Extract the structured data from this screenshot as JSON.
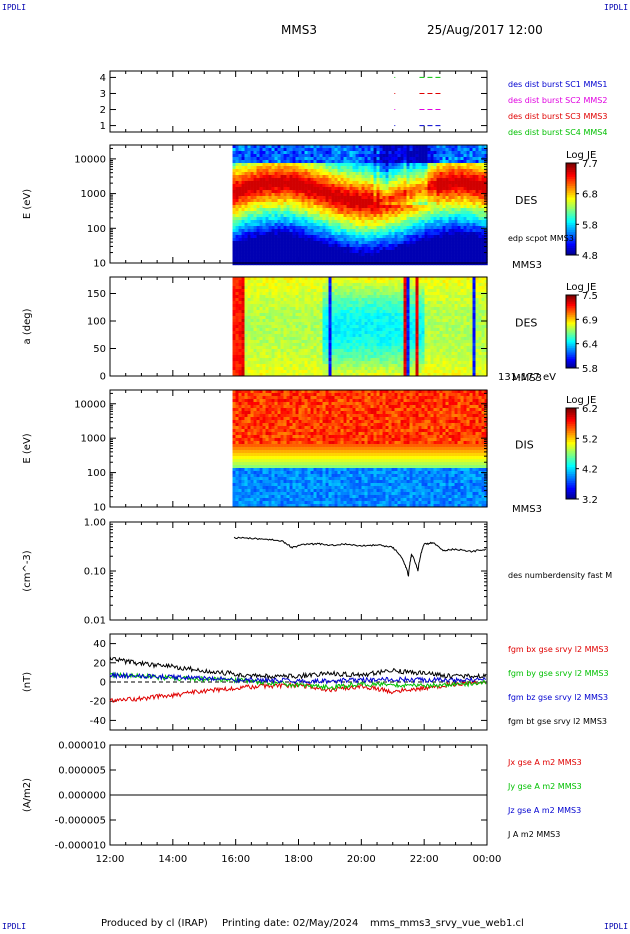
{
  "corner_labels": {
    "top_left": "IPDLI",
    "top_right": "IPDLI",
    "bottom_left": "IPDLI",
    "bottom_right": "IPDLI"
  },
  "header": {
    "spacecraft": "MMS3",
    "datetime": "25/Aug/2017 12:00"
  },
  "footer": {
    "produced_by": "Produced by cl (IRAP)",
    "printing_date": "Printing date: 02/May/2024",
    "filename": "mms_mms3_srvy_vue_web1.cl"
  },
  "time_axis": {
    "ticks": [
      "12:00",
      "14:00",
      "16:00",
      "18:00",
      "20:00",
      "22:00",
      "00:00"
    ],
    "range_hours": [
      12,
      24
    ]
  },
  "colors": {
    "red": "#e00000",
    "magenta": "#e000e0",
    "blue": "#0000d0",
    "green": "#00c000",
    "black": "#000000"
  },
  "chart_data": [
    {
      "id": "burst",
      "type": "scatter",
      "ylim": [
        0.6,
        4.4
      ],
      "yticks": [
        "1",
        "2",
        "3",
        "4"
      ],
      "legend": [
        {
          "name": "des dist burst SC1 MMS1",
          "color": "#0000d0"
        },
        {
          "name": "des dist burst SC2 MMS2",
          "color": "#e000e0"
        },
        {
          "name": "des dist burst SC3 MMS3",
          "color": "#e00000"
        },
        {
          "name": "des dist burst SC4 MMS4",
          "color": "#00c000"
        }
      ],
      "series": [
        {
          "level": 1,
          "color": "#0000d0",
          "intervals": [
            [
              21.05,
              21.08
            ],
            [
              21.85,
              22.55
            ]
          ]
        },
        {
          "level": 2,
          "color": "#e000e0",
          "intervals": [
            [
              21.05,
              21.08
            ],
            [
              21.85,
              22.55
            ]
          ]
        },
        {
          "level": 3,
          "color": "#e00000",
          "intervals": [
            [
              21.05,
              21.08
            ],
            [
              21.85,
              22.55
            ]
          ]
        },
        {
          "level": 4,
          "color": "#00c000",
          "intervals": [
            [
              21.05,
              21.08
            ],
            [
              21.85,
              22.55
            ]
          ]
        }
      ]
    },
    {
      "id": "des_energy",
      "type": "heatmap",
      "ylabel": "E (eV)",
      "yticks": [
        "10",
        "100",
        "1000",
        "10000"
      ],
      "ylog": [
        1,
        4.4
      ],
      "label": "DES",
      "sublabel": "MMS3",
      "overlay": "edp scpot MMS3",
      "colorbar": {
        "title": "Log JE",
        "ticks": [
          "7.7",
          "6.8",
          "5.8",
          "4.8"
        ],
        "range": [
          4.8,
          7.7
        ]
      },
      "data_start_hour": 15.9
    },
    {
      "id": "des_pitch",
      "type": "heatmap",
      "ylabel": "a (deg)",
      "yticks": [
        "0",
        "50",
        "100",
        "150"
      ],
      "ylim": [
        0,
        180
      ],
      "label": "DES",
      "sublabel": "MMS3",
      "energy_band": "131-177 eV",
      "colorbar": {
        "title": "Log JE",
        "ticks": [
          "7.5",
          "6.9",
          "6.4",
          "5.8"
        ],
        "range": [
          5.8,
          7.5
        ]
      },
      "data_start_hour": 15.9
    },
    {
      "id": "dis_energy",
      "type": "heatmap",
      "ylabel": "E (eV)",
      "yticks": [
        "10",
        "100",
        "1000",
        "10000"
      ],
      "ylog": [
        1,
        4.4
      ],
      "label": "DIS",
      "sublabel": "MMS3",
      "colorbar": {
        "title": "Log JE",
        "ticks": [
          "6.2",
          "5.2",
          "4.2",
          "3.2"
        ],
        "range": [
          3.2,
          6.2
        ]
      },
      "data_start_hour": 15.9
    },
    {
      "id": "density",
      "type": "line",
      "ylabel": "(cm^-3)",
      "yticks": [
        "0.01",
        "0.10",
        "1.00"
      ],
      "ylog": [
        -2,
        0
      ],
      "legend": [
        {
          "name": "des numberdensity fast M",
          "color": "#000000"
        }
      ],
      "series": [
        {
          "name": "des numberdensity fast M",
          "color": "#000000",
          "x": [
            15.95,
            16.5,
            17.0,
            17.5,
            17.8,
            18.2,
            18.6,
            19.0,
            19.5,
            20.0,
            20.5,
            21.0,
            21.3,
            21.5,
            21.6,
            21.8,
            22.0,
            22.3,
            22.6,
            23.0,
            23.5,
            24.0
          ],
          "y": [
            0.48,
            0.46,
            0.45,
            0.4,
            0.3,
            0.35,
            0.36,
            0.34,
            0.35,
            0.33,
            0.34,
            0.3,
            0.18,
            0.08,
            0.22,
            0.1,
            0.35,
            0.38,
            0.26,
            0.28,
            0.25,
            0.28
          ]
        }
      ]
    },
    {
      "id": "fgm",
      "type": "line",
      "ylabel": "(nT)",
      "yticks": [
        "-40",
        "-20",
        "0",
        "20",
        "40"
      ],
      "ylim": [
        -50,
        50
      ],
      "legend": [
        {
          "name": "fgm bx gse srvy l2 MMS3",
          "color": "#e00000"
        },
        {
          "name": "fgm by gse srvy l2 MMS3",
          "color": "#00c000"
        },
        {
          "name": "fgm bz gse srvy l2 MMS3",
          "color": "#0000d0"
        },
        {
          "name": "fgm bt gse srvy l2 MMS3",
          "color": "#000000"
        }
      ],
      "series": [
        {
          "name": "bx",
          "color": "#e00000",
          "x": [
            12,
            13,
            14,
            15,
            16,
            17,
            18,
            19,
            20,
            21,
            22,
            23,
            24
          ],
          "y": [
            -20,
            -17,
            -14,
            -9,
            -6,
            -4,
            -3,
            -8,
            -4,
            -10,
            -6,
            -2,
            1
          ]
        },
        {
          "name": "by",
          "color": "#00c000",
          "x": [
            12,
            13,
            14,
            15,
            16,
            17,
            18,
            19,
            20,
            21,
            22,
            23,
            24
          ],
          "y": [
            7,
            6,
            4,
            3,
            2,
            -1,
            -3,
            -6,
            -2,
            -3,
            -4,
            -3,
            0
          ]
        },
        {
          "name": "bz",
          "color": "#0000d0",
          "x": [
            12,
            13,
            14,
            15,
            16,
            17,
            18,
            19,
            20,
            21,
            22,
            23,
            24
          ],
          "y": [
            7,
            6,
            5,
            4,
            2,
            2,
            1,
            1,
            2,
            3,
            2,
            2,
            3
          ]
        },
        {
          "name": "bt",
          "color": "#000000",
          "x": [
            12,
            13,
            14,
            15,
            16,
            17,
            18,
            19,
            20,
            21,
            22,
            23,
            24
          ],
          "y": [
            24,
            19,
            16,
            12,
            8,
            6,
            6,
            9,
            7,
            12,
            9,
            6,
            6
          ]
        }
      ]
    },
    {
      "id": "current",
      "type": "line",
      "ylabel": "(A/m2)",
      "yticks": [
        "-0.000010",
        "-0.000005",
        "0.000000",
        "0.000005",
        "0.000010"
      ],
      "ylim": [
        -1e-05,
        1e-05
      ],
      "legend": [
        {
          "name": "Jx gse A m2 MMS3",
          "color": "#e00000"
        },
        {
          "name": "Jy gse A m2 MMS3",
          "color": "#00c000"
        },
        {
          "name": "Jz gse A m2 MMS3",
          "color": "#0000d0"
        },
        {
          "name": "J A m2 MMS3",
          "color": "#000000"
        }
      ],
      "series": [
        {
          "name": "J",
          "color": "#000000",
          "x": [
            12,
            24
          ],
          "y": [
            0,
            0
          ]
        }
      ]
    }
  ]
}
